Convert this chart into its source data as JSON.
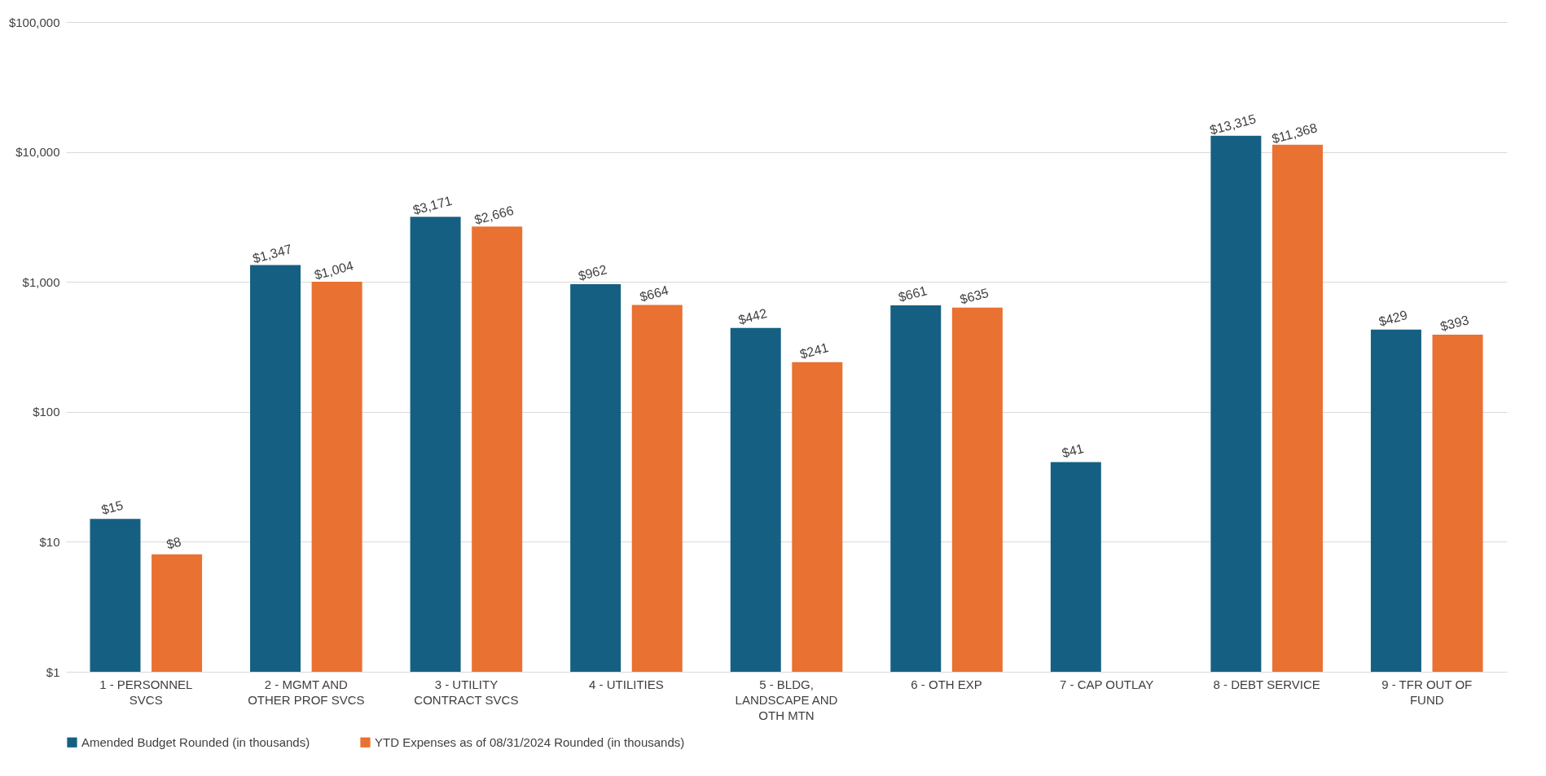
{
  "chart_data": {
    "type": "bar",
    "categories": [
      "1 - PERSONNEL SVCS",
      "2 - MGMT AND OTHER PROF SVCS",
      "3 - UTILITY CONTRACT SVCS",
      "4 - UTILITIES",
      "5 - BLDG, LANDSCAPE AND OTH MTN",
      "6 - OTH EXP",
      "7 - CAP OUTLAY",
      "8 - DEBT SERVICE",
      "9 - TFR OUT OF FUND"
    ],
    "series": [
      {
        "name": "Amended Budget Rounded (in thousands)",
        "color": "#156082",
        "values": [
          15,
          1347,
          3171,
          962,
          442,
          661,
          41,
          13315,
          429
        ],
        "value_labels": [
          "$15",
          "$1,347",
          "$3,171",
          "$962",
          "$442",
          "$661",
          "$41",
          "$13,315",
          "$429"
        ]
      },
      {
        "name": "YTD Expenses as of  08/31/2024 Rounded (in thousands)",
        "color": "#e97132",
        "values": [
          8,
          1004,
          2666,
          664,
          241,
          635,
          null,
          11368,
          393
        ],
        "value_labels": [
          "$8",
          "$1,004",
          "$2,666",
          "$664",
          "$241",
          "$635",
          null,
          "$11,368",
          "$393"
        ]
      }
    ],
    "log": "y",
    "ylim": [
      1,
      100000
    ],
    "yticks": [
      {
        "value": 1,
        "label": "$1"
      },
      {
        "value": 10,
        "label": "$10"
      },
      {
        "value": 100,
        "label": "$100"
      },
      {
        "value": 1000,
        "label": "$1,000"
      },
      {
        "value": 10000,
        "label": "$10,000"
      },
      {
        "value": 100000,
        "label": "$100,000"
      }
    ],
    "grid": "y",
    "legend": "bottom"
  }
}
